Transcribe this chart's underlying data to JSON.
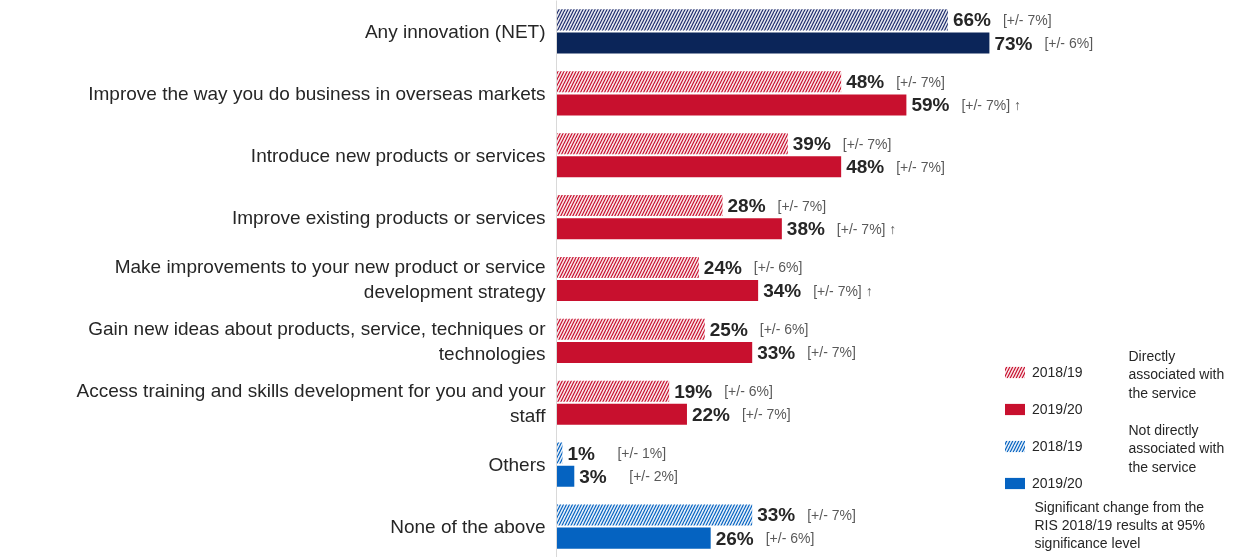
{
  "chart_data": {
    "type": "bar",
    "orientation": "horizontal",
    "categories": [
      "Any innovation (NET)",
      "Improve the way you do business in overseas markets",
      "Introduce new products or services",
      "Improve existing products or services",
      "Make improvements to your new product or service development strategy",
      "Gain new ideas about products, service, techniques or technologies",
      "Access training and skills development for you and your staff",
      "Others",
      "None of the above"
    ],
    "series": [
      {
        "name": "2018/19",
        "colors": [
          "#1f2d6e",
          "#c8102e",
          "#c8102e",
          "#c8102e",
          "#c8102e",
          "#c8102e",
          "#c8102e",
          "#0563c1",
          "#0563c1"
        ],
        "values": [
          66,
          48,
          39,
          28,
          24,
          25,
          19,
          1,
          33
        ],
        "value_labels": [
          "66%",
          "48%",
          "39%",
          "28%",
          "24%",
          "25%",
          "19%",
          "1%",
          "33%"
        ]
      },
      {
        "name": "2019/20",
        "colors": [
          "#0b2559",
          "#c8102e",
          "#c8102e",
          "#c8102e",
          "#c8102e",
          "#c8102e",
          "#c8102e",
          "#0563c1",
          "#0563c1"
        ],
        "values": [
          73,
          59,
          48,
          38,
          34,
          33,
          22,
          3,
          26
        ],
        "value_labels": [
          "73%",
          "59%",
          "48%",
          "38%",
          "34%",
          "33%",
          "22%",
          "3%",
          "26%"
        ]
      }
    ],
    "tick_labels": "y",
    "grid": false,
    "legend": "bottom right",
    "annotations": [
      "Directly associated with the service",
      "Not directly associated with the service",
      "Significant change from the RIS 2018/19 results at 95% significance level",
      "[+/- 7%]",
      "[+/- 6%]",
      "[+/- 7%]",
      "[+/- 7%] ↑",
      "[+/- 7%]",
      "[+/- 7%]",
      "[+/- 7%]",
      "[+/- 7%] ↑",
      "[+/- 6%]",
      "[+/- 7%] ↑",
      "[+/- 6%]",
      "[+/- 7%]",
      "[+/- 6%]",
      "[+/- 7%]",
      "[+/- 1%]",
      "[+/- 2%]",
      "[+/- 7%]",
      "[+/- 6%]"
    ]
  }
}
